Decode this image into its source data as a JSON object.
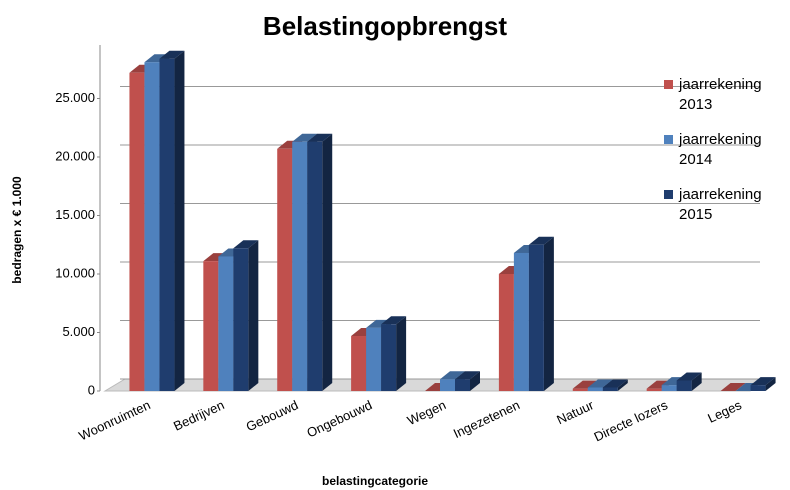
{
  "chart_data": {
    "type": "bar",
    "title": "Belastingopbrengst",
    "x_label": "belastingcategorie",
    "y_label": "bedragen x € 1.000",
    "categories": [
      "Woonruimten",
      "Bedrijven",
      "Gebouwd",
      "Ongebouwd",
      "Wegen",
      "Ingezetenen",
      "Natuur",
      "Directe lozers",
      "Leges"
    ],
    "series": [
      {
        "name": "jaarrekening 2013",
        "color": "#c0504d",
        "values": [
          27200,
          11100,
          20700,
          4700,
          0,
          10000,
          200,
          200,
          0
        ]
      },
      {
        "name": "jaarrekening 2014",
        "color": "#4f81bd",
        "values": [
          28100,
          11500,
          21300,
          5400,
          1000,
          11800,
          300,
          500,
          0
        ]
      },
      {
        "name": "jaarrekening 2015",
        "color": "#1f3d6e",
        "values": [
          28400,
          12200,
          21300,
          5700,
          1000,
          12500,
          300,
          900,
          500
        ]
      }
    ],
    "ylim": [
      0,
      30000
    ],
    "yticks": [
      0,
      {
        "value": 5000,
        "label": "5.000"
      },
      {
        "value": 10000,
        "label": "10.000"
      },
      {
        "value": 15000,
        "label": "15.000"
      },
      {
        "value": 20000,
        "label": "20.000"
      },
      {
        "value": 25000,
        "label": "25.000"
      }
    ],
    "grid": true,
    "legend": "right"
  }
}
